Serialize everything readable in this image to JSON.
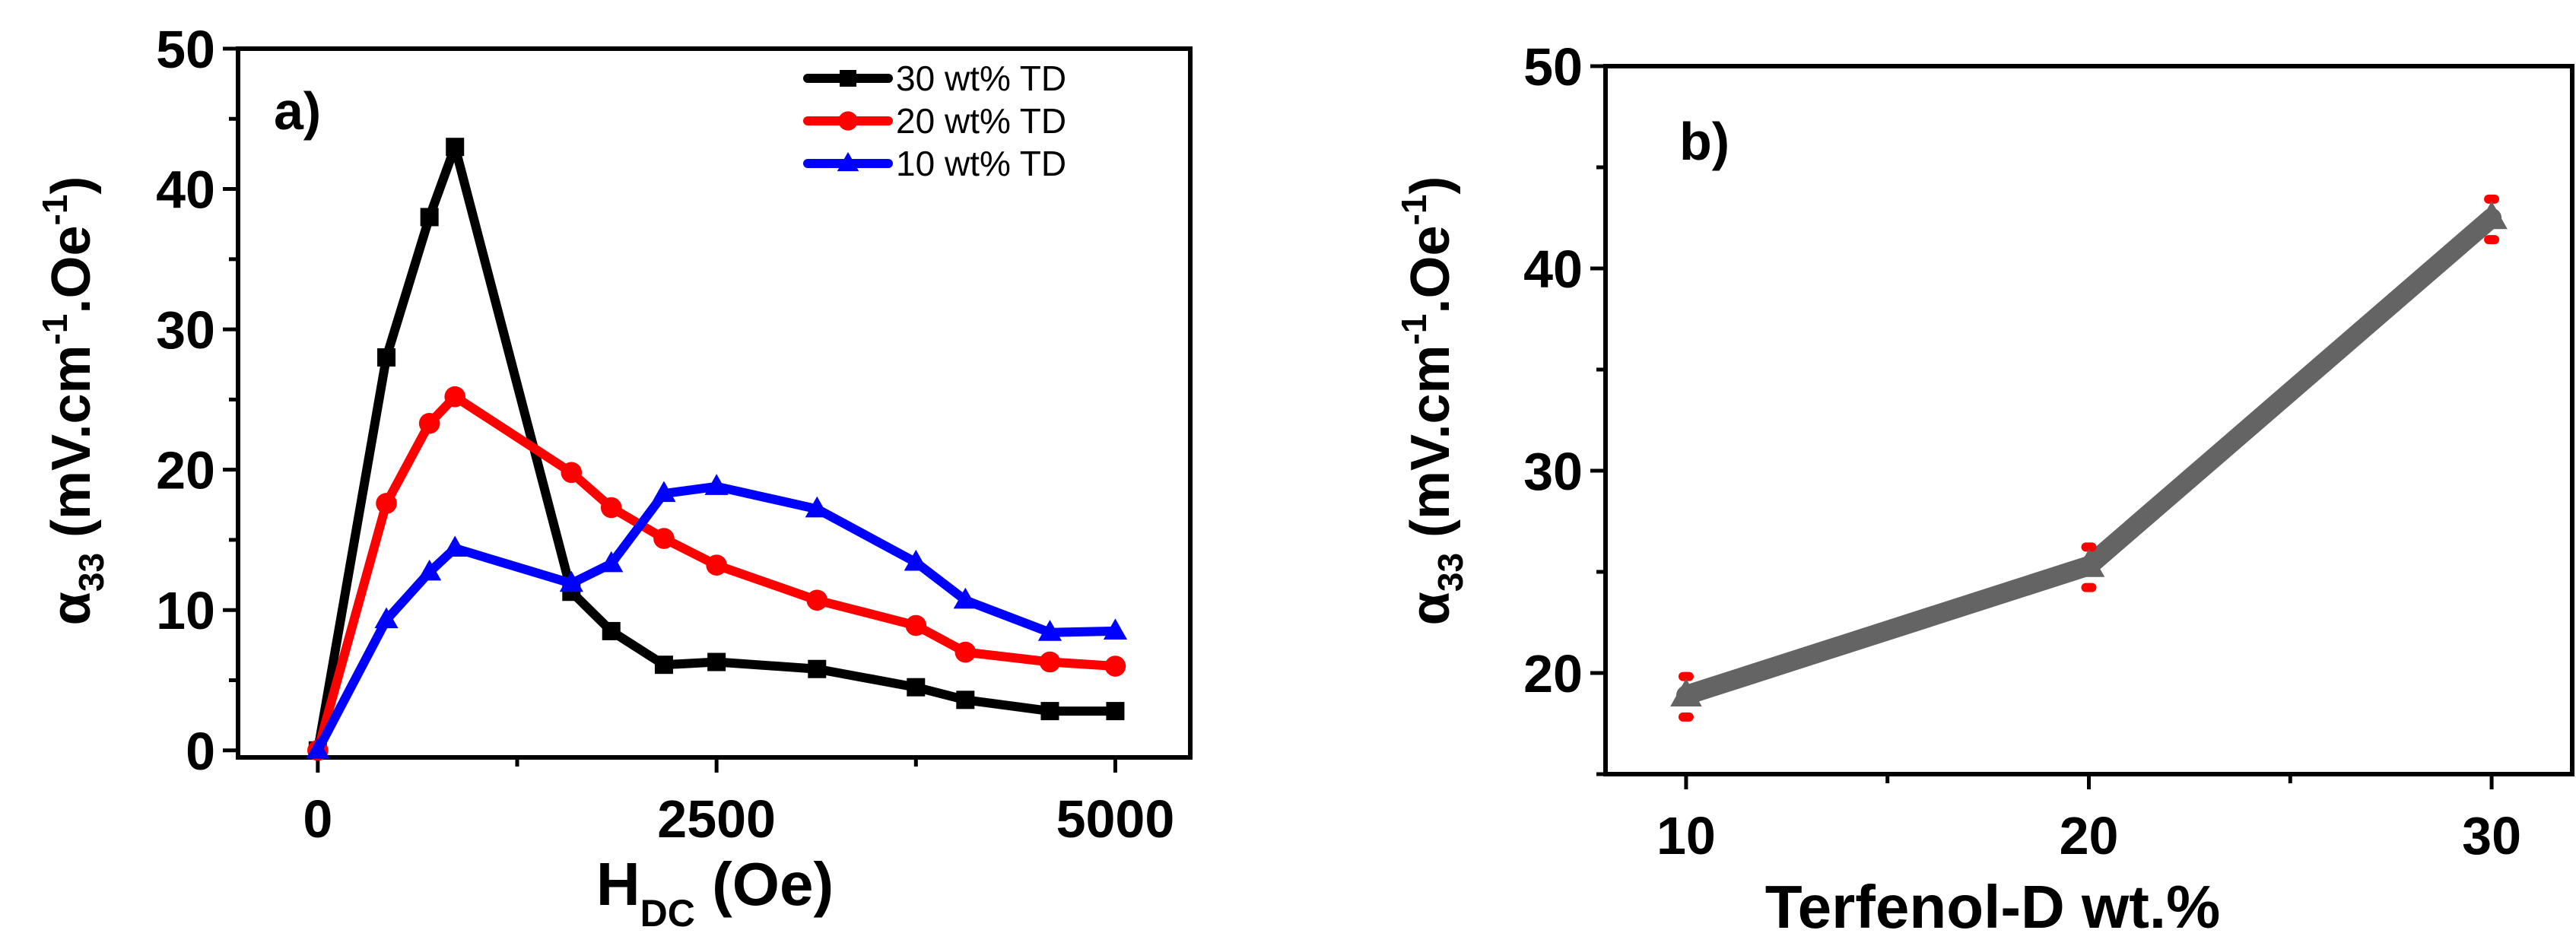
{
  "chart_data": [
    {
      "panel": "a)",
      "type": "line",
      "title": "",
      "xlabel": "H",
      "xlabel_sub": "DC",
      "xlabel_rest": " (Oe)",
      "ylabel_symbol": "α",
      "ylabel_sub": "33",
      "ylabel_main": " (mV.cm",
      "ylabel_sup1": "-1",
      "ylabel_mid": ".Oe",
      "ylabel_sup2": "-1",
      "ylabel_end": ")",
      "xlim": [
        -500,
        5470
      ],
      "ylim": [
        -0.5,
        50
      ],
      "xticks": [
        0,
        2500,
        5000
      ],
      "xticks_minor": [
        1250,
        3750
      ],
      "yticks": [
        0,
        10,
        20,
        30,
        40,
        50
      ],
      "yticks_minor": [
        5,
        15,
        25,
        35,
        45
      ],
      "grid": false,
      "legend_position": "top-right",
      "x": [
        0,
        430,
        700,
        860,
        1590,
        1840,
        2170,
        2500,
        3130,
        3750,
        4060,
        4590,
        5000
      ],
      "series": [
        {
          "name": "30 wt% TD",
          "color": "#000000",
          "marker": "square",
          "values": [
            0,
            28.0,
            38.0,
            43.0,
            11.3,
            8.5,
            6.1,
            6.3,
            5.8,
            4.5,
            3.6,
            2.8,
            2.8
          ]
        },
        {
          "name": "20 wt% TD",
          "color": "#ff0000",
          "marker": "circle",
          "values": [
            0,
            17.6,
            23.3,
            25.2,
            19.8,
            17.3,
            15.1,
            13.2,
            10.7,
            8.9,
            7.0,
            6.3,
            6.0
          ]
        },
        {
          "name": "10 wt% TD",
          "color": "#0000ff",
          "marker": "triangle",
          "values": [
            0,
            9.3,
            12.7,
            14.4,
            11.9,
            13.3,
            18.3,
            18.8,
            17.2,
            13.4,
            10.7,
            8.4,
            8.5
          ]
        }
      ]
    },
    {
      "panel": "b)",
      "type": "line",
      "title": "",
      "xlabel": "Terfenol-D wt.%",
      "ylabel_symbol": "α",
      "ylabel_sub": "33",
      "ylabel_main": " (mV.cm",
      "ylabel_sup1": "-1",
      "ylabel_mid": ".Oe",
      "ylabel_sup2": "-1",
      "ylabel_end": ")",
      "xlim": [
        8,
        32
      ],
      "ylim": [
        15,
        50
      ],
      "xticks": [
        10,
        20,
        30
      ],
      "xticks_minor": [
        15,
        25
      ],
      "yticks": [
        20,
        30,
        40,
        50
      ],
      "yticks_minor": [
        15,
        25,
        35,
        45
      ],
      "grid": false,
      "x": [
        10,
        20,
        30
      ],
      "series": [
        {
          "name": "α33",
          "color": "#646464",
          "marker": "triangle",
          "values": [
            18.9,
            25.3,
            42.5
          ],
          "error_low": [
            17.9,
            24.3,
            41.5
          ],
          "error_high": [
            19.9,
            26.3,
            43.5
          ],
          "error_color": "#ff0000"
        }
      ]
    }
  ]
}
